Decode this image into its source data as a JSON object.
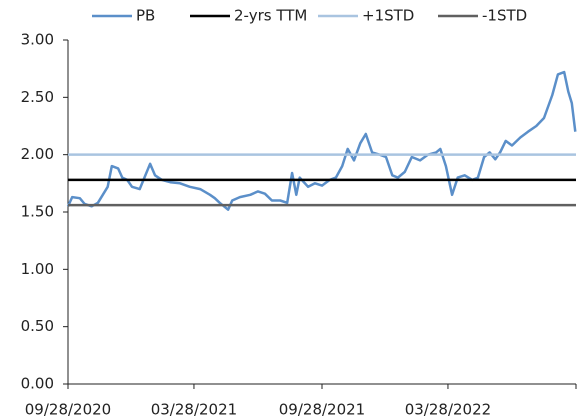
{
  "chart_data": {
    "type": "line",
    "x": [
      "2020-09-28",
      "2020-10-04",
      "2020-10-15",
      "2020-10-22",
      "2020-11-01",
      "2020-11-10",
      "2020-11-17",
      "2020-11-24",
      "2020-11-30",
      "2020-12-09",
      "2020-12-15",
      "2020-12-22",
      "2020-12-29",
      "2021-01-09",
      "2021-01-24",
      "2021-01-31",
      "2021-02-10",
      "2021-02-22",
      "2021-03-08",
      "2021-03-22",
      "2021-04-06",
      "2021-04-20",
      "2021-04-27",
      "2021-05-04",
      "2021-05-16",
      "2021-05-22",
      "2021-06-02",
      "2021-06-17",
      "2021-06-28",
      "2021-07-08",
      "2021-07-18",
      "2021-07-30",
      "2021-08-09",
      "2021-08-16",
      "2021-08-22",
      "2021-08-27",
      "2021-09-08",
      "2021-09-18",
      "2021-09-28",
      "2021-10-09",
      "2021-10-18",
      "2021-10-27",
      "2021-11-04",
      "2021-11-13",
      "2021-11-22",
      "2021-11-30",
      "2021-12-09",
      "2021-12-20",
      "2021-12-29",
      "2022-01-07",
      "2022-01-15",
      "2022-01-25",
      "2022-02-04",
      "2022-02-16",
      "2022-02-27",
      "2022-03-11",
      "2022-03-17",
      "2022-03-25",
      "2022-04-03",
      "2022-04-11",
      "2022-04-21",
      "2022-05-02",
      "2022-05-10",
      "2022-05-19",
      "2022-05-27",
      "2022-06-04",
      "2022-06-11",
      "2022-06-19",
      "2022-06-28",
      "2022-07-10",
      "2022-07-21",
      "2022-08-02",
      "2022-08-13",
      "2022-08-25",
      "2022-09-02",
      "2022-09-11",
      "2022-09-17",
      "2022-09-22",
      "2022-09-27"
    ],
    "series": [
      {
        "name": "PB",
        "color": "#5b8fc9",
        "values": [
          1.55,
          1.63,
          1.62,
          1.57,
          1.55,
          1.58,
          1.65,
          1.72,
          1.9,
          1.88,
          1.8,
          1.78,
          1.72,
          1.7,
          1.92,
          1.82,
          1.78,
          1.76,
          1.75,
          1.72,
          1.7,
          1.65,
          1.62,
          1.58,
          1.52,
          1.6,
          1.63,
          1.65,
          1.68,
          1.66,
          1.6,
          1.6,
          1.58,
          1.84,
          1.65,
          1.8,
          1.72,
          1.75,
          1.73,
          1.78,
          1.8,
          1.9,
          2.05,
          1.95,
          2.1,
          2.18,
          2.02,
          2.0,
          1.98,
          1.82,
          1.8,
          1.85,
          1.98,
          1.95,
          2.0,
          2.02,
          2.05,
          1.9,
          1.65,
          1.8,
          1.82,
          1.78,
          1.8,
          1.98,
          2.02,
          1.96,
          2.02,
          2.12,
          2.08,
          2.15,
          2.2,
          2.25,
          2.32,
          2.52,
          2.7,
          2.72,
          2.55,
          2.45,
          2.2
        ]
      },
      {
        "name": "2-yrs TTM",
        "color": "#000000",
        "value": 1.78
      },
      {
        "name": "+1STD",
        "color": "#a9c4e0",
        "value": 2.0
      },
      {
        "name": "-1STD",
        "color": "#606060",
        "value": 1.56
      }
    ],
    "xlim": [
      "2020-09-28",
      "2022-09-28"
    ],
    "xticks": [
      {
        "value": "2020-09-28",
        "label": "09/28/2020"
      },
      {
        "value": "2021-03-28",
        "label": "03/28/2021"
      },
      {
        "value": "2021-09-28",
        "label": "09/28/2021"
      },
      {
        "value": "2022-03-28",
        "label": "03/28/2022"
      }
    ],
    "ylim": [
      0,
      3
    ],
    "yticks": [
      {
        "value": 0,
        "label": "0.00"
      },
      {
        "value": 0.5,
        "label": "0.50"
      },
      {
        "value": 1,
        "label": "1.00"
      },
      {
        "value": 1.5,
        "label": "1.50"
      },
      {
        "value": 2,
        "label": "2.00"
      },
      {
        "value": 2.5,
        "label": "2.50"
      },
      {
        "value": 3,
        "label": "3.00"
      }
    ],
    "legend": "top"
  }
}
